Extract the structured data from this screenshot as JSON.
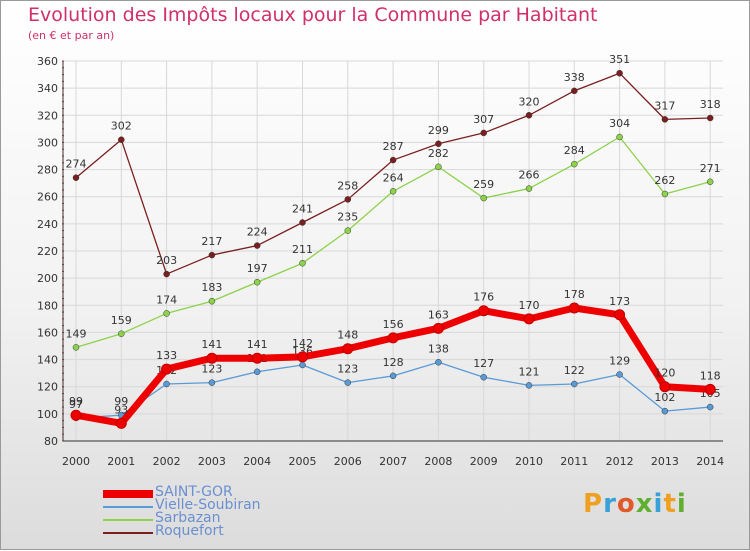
{
  "title": "Evolution des Impôts locaux pour la Commune par Habitant",
  "subtitle": "(en € et par an)",
  "logo": {
    "text": "Proxiti",
    "colors": [
      "#f0a020",
      "#3aa0d8",
      "#e05a2a",
      "#60b030",
      "#3aa0d8",
      "#f0a020",
      "#60b030"
    ]
  },
  "chart_data": {
    "type": "line",
    "title": "Evolution des Impôts locaux pour la Commune par Habitant",
    "ylabel": "(en € et par an)",
    "xlabel": "",
    "ylim": [
      80,
      360
    ],
    "yticks": [
      80,
      100,
      120,
      140,
      160,
      180,
      200,
      220,
      240,
      260,
      280,
      300,
      320,
      340,
      360
    ],
    "grid": true,
    "legend_position": "bottom-left",
    "categories": [
      "2000",
      "2001",
      "2002",
      "2003",
      "2004",
      "2005",
      "2006",
      "2007",
      "2008",
      "2009",
      "2010",
      "2011",
      "2012",
      "2013",
      "2014"
    ],
    "series": [
      {
        "name": "Roquefort",
        "color": "#7a1f1f",
        "values": [
          274,
          302,
          203,
          217,
          224,
          241,
          258,
          287,
          299,
          307,
          320,
          338,
          351,
          317,
          318
        ]
      },
      {
        "name": "Sarbazan",
        "color": "#8cd24a",
        "values": [
          149,
          159,
          174,
          183,
          197,
          211,
          235,
          264,
          282,
          259,
          266,
          284,
          304,
          262,
          271
        ]
      },
      {
        "name": "Vielle-Soubiran",
        "color": "#5a9ad6",
        "values": [
          97,
          99,
          122,
          123,
          131,
          136,
          123,
          128,
          138,
          127,
          121,
          122,
          129,
          102,
          105
        ]
      },
      {
        "name": "SAINT-GOR",
        "color": "#ee0000",
        "values": [
          99,
          93,
          133,
          141,
          141,
          142,
          148,
          156,
          163,
          176,
          170,
          178,
          173,
          120,
          118
        ]
      }
    ],
    "legend": [
      "SAINT-GOR",
      "Vielle-Soubiran",
      "Sarbazan",
      "Roquefort"
    ]
  }
}
